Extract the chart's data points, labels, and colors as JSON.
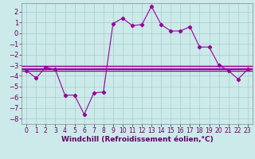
{
  "xlabel": "Windchill (Refroidissement éolien,°C)",
  "x": [
    0,
    1,
    2,
    3,
    4,
    5,
    6,
    7,
    8,
    9,
    10,
    11,
    12,
    13,
    14,
    15,
    16,
    17,
    18,
    19,
    20,
    21,
    22,
    23
  ],
  "y_main": [
    -3.5,
    -4.2,
    -3.2,
    -3.4,
    -5.8,
    -5.8,
    -7.6,
    -5.6,
    -5.5,
    0.9,
    1.4,
    0.7,
    0.8,
    2.5,
    0.8,
    0.2,
    0.2,
    0.6,
    -1.3,
    -1.3,
    -3.0,
    -3.5,
    -4.3,
    -3.4
  ],
  "y_horiz1": -3.1,
  "y_horiz2": -3.35,
  "y_horiz3": -3.55,
  "ylim": [
    -8.5,
    2.8
  ],
  "xlim": [
    -0.5,
    23.5
  ],
  "yticks": [
    -8,
    -7,
    -6,
    -5,
    -4,
    -3,
    -2,
    -1,
    0,
    1,
    2
  ],
  "xticks": [
    0,
    1,
    2,
    3,
    4,
    5,
    6,
    7,
    8,
    9,
    10,
    11,
    12,
    13,
    14,
    15,
    16,
    17,
    18,
    19,
    20,
    21,
    22,
    23
  ],
  "line_color": "#990099",
  "bg_color": "#cceaea",
  "grid_color": "#aacccc",
  "axis_fontsize": 6.0,
  "tick_fontsize": 6.0,
  "xlabel_fontsize": 6.5
}
